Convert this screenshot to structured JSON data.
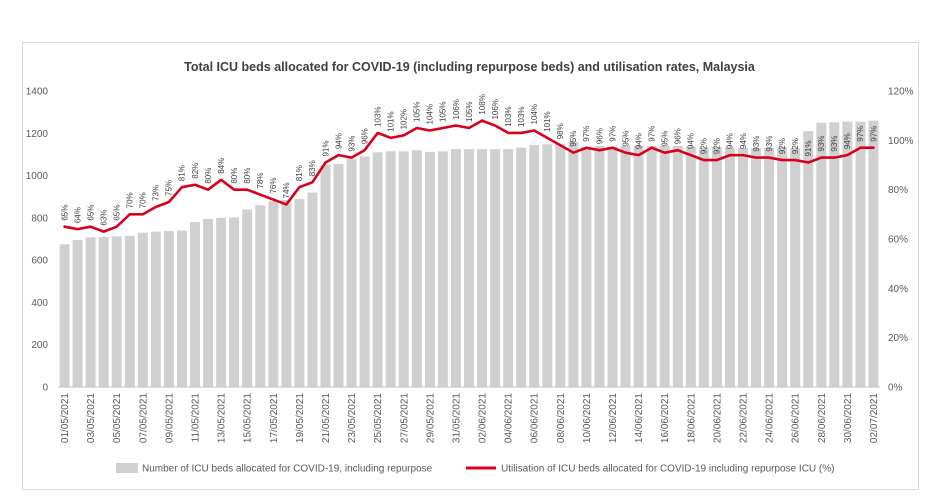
{
  "chart_data": {
    "type": "bar",
    "title": "Total ICU beds allocated for COVID-19 (including repurpose beds) and utilisation rates, Malaysia",
    "xlabel": "",
    "ylabel": "",
    "y_left_ticks": [
      "0",
      "200",
      "400",
      "600",
      "800",
      "1000",
      "1200",
      "1400"
    ],
    "y_right_ticks": [
      "0%",
      "20%",
      "40%",
      "60%",
      "80%",
      "100%",
      "120%"
    ],
    "ylim_left": [
      0,
      1400
    ],
    "ylim_right": [
      0,
      120
    ],
    "grid": false,
    "legend_position": "bottom",
    "x_tick_labels": [
      "01/05/2021",
      "03/05/2021",
      "05/05/2021",
      "07/05/2021",
      "09/05/2021",
      "11/05/2021",
      "13/05/2021",
      "15/05/2021",
      "17/05/2021",
      "19/05/2021",
      "21/05/2021",
      "23/05/2021",
      "25/05/2021",
      "27/05/2021",
      "29/05/2021",
      "31/05/2021",
      "02/06/2021",
      "04/06/2021",
      "06/06/2021",
      "08/06/2021",
      "10/06/2021",
      "12/06/2021",
      "14/06/2021",
      "16/06/2021",
      "18/06/2021",
      "20/06/2021",
      "22/06/2021",
      "24/06/2021",
      "26/06/2021",
      "28/06/2021",
      "30/06/2021",
      "02/07/2021"
    ],
    "categories": [
      "01/05/2021",
      "02/05/2021",
      "03/05/2021",
      "04/05/2021",
      "05/05/2021",
      "06/05/2021",
      "07/05/2021",
      "08/05/2021",
      "09/05/2021",
      "10/05/2021",
      "11/05/2021",
      "12/05/2021",
      "13/05/2021",
      "14/05/2021",
      "15/05/2021",
      "16/05/2021",
      "17/05/2021",
      "18/05/2021",
      "19/05/2021",
      "20/05/2021",
      "21/05/2021",
      "22/05/2021",
      "23/05/2021",
      "24/05/2021",
      "25/05/2021",
      "26/05/2021",
      "27/05/2021",
      "28/05/2021",
      "29/05/2021",
      "30/05/2021",
      "31/05/2021",
      "01/06/2021",
      "02/06/2021",
      "03/06/2021",
      "04/06/2021",
      "05/06/2021",
      "06/06/2021",
      "07/06/2021",
      "08/06/2021",
      "09/06/2021",
      "10/06/2021",
      "11/06/2021",
      "12/06/2021",
      "13/06/2021",
      "14/06/2021",
      "15/06/2021",
      "16/06/2021",
      "17/06/2021",
      "18/06/2021",
      "19/06/2021",
      "20/06/2021",
      "21/06/2021",
      "22/06/2021",
      "23/06/2021",
      "24/06/2021",
      "25/06/2021",
      "26/06/2021",
      "27/06/2021",
      "28/06/2021",
      "29/06/2021",
      "30/06/2021",
      "01/07/2021",
      "02/07/2021"
    ],
    "series": [
      {
        "name": "Number of ICU beds allocated for COVID-19, including repurpose",
        "type": "bar",
        "axis": "left",
        "color": "#d0d0d0",
        "values": [
          675,
          695,
          708,
          710,
          712,
          715,
          730,
          735,
          738,
          740,
          780,
          795,
          800,
          802,
          840,
          860,
          880,
          885,
          890,
          920,
          1050,
          1055,
          1080,
          1090,
          1110,
          1115,
          1115,
          1120,
          1112,
          1115,
          1125,
          1125,
          1125,
          1125,
          1125,
          1132,
          1145,
          1148,
          1150,
          1160,
          1135,
          1140,
          1135,
          1140,
          1140,
          1140,
          1140,
          1140,
          1135,
          1132,
          1135,
          1132,
          1130,
          1130,
          1132,
          1135,
          1130,
          1210,
          1250,
          1252,
          1255,
          1255,
          1260
        ]
      },
      {
        "name": "Utilisation of ICU beds allocated for COVID-19 including repurpose ICU (%)",
        "type": "line",
        "axis": "right",
        "color": "#d9001b",
        "values": [
          65,
          64,
          65,
          63,
          65,
          70,
          70,
          73,
          75,
          81,
          82,
          80,
          84,
          80,
          80,
          78,
          76,
          74,
          81,
          83,
          91,
          94,
          93,
          96,
          103,
          101,
          102,
          105,
          104,
          105,
          106,
          105,
          108,
          106,
          103,
          103,
          104,
          101,
          98,
          95,
          97,
          96,
          97,
          95,
          94,
          97,
          95,
          96,
          94,
          92,
          92,
          94,
          94,
          93,
          93,
          92,
          92,
          91,
          93,
          93,
          94,
          97,
          97
        ]
      }
    ],
    "data_labels": [
      "65%",
      "64%",
      "65%",
      "63%",
      "65%",
      "70%",
      "70%",
      "73%",
      "75%",
      "81%",
      "82%",
      "80%",
      "84%",
      "80%",
      "80%",
      "78%",
      "76%",
      "74%",
      "81%",
      "83%",
      "91%",
      "94%",
      "93%",
      "96%",
      "103%",
      "101%",
      "102%",
      "105%",
      "104%",
      "105%",
      "106%",
      "105%",
      "108%",
      "106%",
      "103%",
      "103%",
      "104%",
      "101%",
      "98%",
      "95%",
      "97%",
      "96%",
      "97%",
      "95%",
      "94%",
      "97%",
      "95%",
      "96%",
      "94%",
      "92%",
      "92%",
      "94%",
      "94%",
      "93%",
      "93%",
      "92%",
      "92%",
      "91%",
      "93%",
      "93%",
      "94%",
      "97%",
      "97%"
    ]
  }
}
